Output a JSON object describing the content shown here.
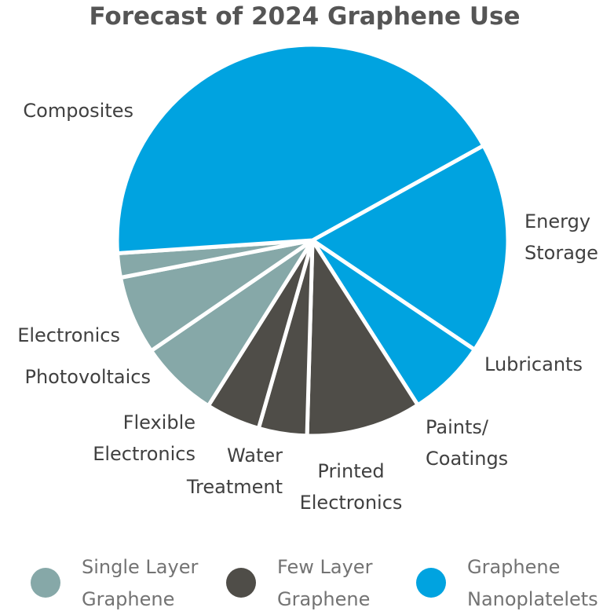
{
  "chart_data": {
    "type": "pie",
    "title": "Forecast of 2024 Graphene Use",
    "legend": {
      "placement": "bottom",
      "entries": [
        {
          "key": "single",
          "label": [
            "Single Layer",
            "Graphene"
          ],
          "color": "#86a8a8"
        },
        {
          "key": "few",
          "label": [
            "Few Layer",
            "Graphene"
          ],
          "color": "#4f4d48"
        },
        {
          "key": "nano",
          "label": [
            "Graphene",
            "Nanoplatelets"
          ],
          "color": "#00a3e0"
        }
      ]
    },
    "slices": [
      {
        "label": [
          "Energy",
          "Storage"
        ],
        "value": 17.5,
        "group": "nano"
      },
      {
        "label": [
          "Lubricants"
        ],
        "value": 6.5,
        "group": "nano"
      },
      {
        "label": [
          "Paints/",
          "Coatings"
        ],
        "value": 9.5,
        "group": "few"
      },
      {
        "label": [
          "Printed",
          "Electronics"
        ],
        "value": 4.0,
        "group": "few"
      },
      {
        "label": [
          "Water",
          "Treatment"
        ],
        "value": 4.5,
        "group": "few"
      },
      {
        "label": [
          "Flexible",
          "Electronics"
        ],
        "value": 6.5,
        "group": "single"
      },
      {
        "label": [
          "Photovoltaics"
        ],
        "value": 6.5,
        "group": "single"
      },
      {
        "label": [
          "Electronics"
        ],
        "value": 2.0,
        "group": "single"
      },
      {
        "label": [
          "Composites"
        ],
        "value": 43.0,
        "group": "nano"
      }
    ]
  }
}
